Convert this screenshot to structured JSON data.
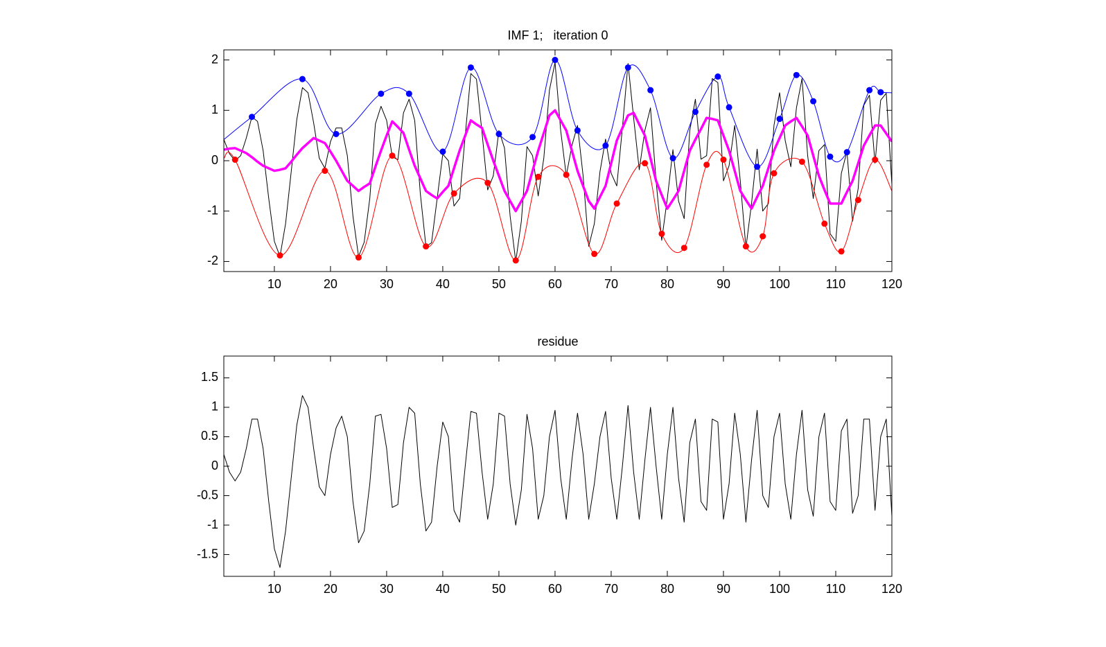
{
  "chart_data": [
    {
      "type": "line",
      "title": "IMF 1;   iteration 0",
      "xlim": [
        1,
        120
      ],
      "ylim": [
        -2.2,
        2.2
      ],
      "xticks": [
        10,
        20,
        30,
        40,
        50,
        60,
        70,
        80,
        90,
        100,
        110,
        120
      ],
      "yticks": [
        -2,
        -1,
        0,
        1,
        2
      ],
      "x": [
        1,
        2,
        3,
        4,
        5,
        6,
        7,
        8,
        9,
        10,
        11,
        12,
        13,
        14,
        15,
        16,
        17,
        18,
        19,
        20,
        21,
        22,
        23,
        24,
        25,
        26,
        27,
        28,
        29,
        30,
        31,
        32,
        33,
        34,
        35,
        36,
        37,
        38,
        39,
        40,
        41,
        42,
        43,
        44,
        45,
        46,
        47,
        48,
        49,
        50,
        51,
        52,
        53,
        54,
        55,
        56,
        57,
        58,
        59,
        60,
        61,
        62,
        63,
        64,
        65,
        66,
        67,
        68,
        69,
        70,
        71,
        72,
        73,
        74,
        75,
        76,
        77,
        78,
        79,
        80,
        81,
        82,
        83,
        84,
        85,
        86,
        87,
        88,
        89,
        90,
        91,
        92,
        93,
        94,
        95,
        96,
        97,
        98,
        99,
        100,
        101,
        102,
        103,
        104,
        105,
        106,
        107,
        108,
        109,
        110,
        111,
        112,
        113,
        114,
        115,
        116,
        117,
        118,
        119,
        120
      ],
      "series": [
        {
          "kind": "line",
          "color": "#000000",
          "width": 1,
          "values": [
            0.42,
            0.14,
            0,
            0.1,
            0.45,
            0.87,
            0.78,
            0.2,
            -0.75,
            -1.6,
            -1.9,
            -1.25,
            -0.22,
            0.82,
            1.45,
            1.35,
            0.75,
            0.05,
            -0.15,
            0.38,
            0.65,
            0.65,
            0.1,
            -1.1,
            -1.9,
            -1.62,
            -0.75,
            0.73,
            1.08,
            0.8,
            0.08,
            0.02,
            0.95,
            1.22,
            0.8,
            -0.65,
            -1.7,
            -1.63,
            -0.75,
            0.13,
            0,
            -0.9,
            -0.75,
            0.5,
            1.73,
            1.62,
            0.55,
            -0.58,
            -0.3,
            0.6,
            0.25,
            -1.1,
            -2.0,
            -1.2,
            0.28,
            0.1,
            -0.7,
            0.05,
            1.4,
            1.95,
            0.6,
            -0.3,
            0.3,
            0.7,
            -0.3,
            -1.7,
            -1.25,
            -0.22,
            0.43,
            -0.25,
            -0.5,
            0.65,
            1.93,
            0.85,
            -0.18,
            0.6,
            1.05,
            -0.4,
            -1.58,
            -0.75,
            0.22,
            -0.8,
            -1.15,
            0.6,
            1.22,
            0.03,
            0.1,
            1.63,
            1.55,
            -0.4,
            -0.1,
            0.7,
            -0.4,
            -1.73,
            -0.85,
            0.23,
            -1.0,
            -0.85,
            0.7,
            1.35,
            0.4,
            -0.12,
            1.05,
            1.63,
            0.1,
            -0.75,
            0.2,
            0.32,
            -1.45,
            -1.6,
            -0.25,
            0.18,
            -1.2,
            -0.55,
            1.1,
            1.3,
            -0.05,
            1.2,
            1.34,
            -0.47
          ]
        },
        {
          "kind": "line",
          "smooth": true,
          "color": "#0000ff",
          "width": 1,
          "x": [
            1,
            6,
            15,
            21,
            29,
            34,
            40,
            45,
            50,
            56,
            60,
            64,
            69,
            73,
            77,
            81,
            85,
            89,
            91,
            96,
            100,
            103,
            106,
            109,
            112,
            116,
            118,
            120
          ],
          "values": [
            0.42,
            0.87,
            1.62,
            0.53,
            1.33,
            1.33,
            0.18,
            1.85,
            0.53,
            0.47,
            2.0,
            0.6,
            0.3,
            1.85,
            1.4,
            0.05,
            0.97,
            1.67,
            1.06,
            -0.12,
            0.83,
            1.7,
            1.18,
            0.08,
            0.17,
            1.4,
            1.36,
            1.35
          ]
        },
        {
          "kind": "line",
          "smooth": true,
          "color": "#ff0000",
          "width": 1,
          "x": [
            1,
            3,
            11,
            19,
            25,
            31,
            37,
            42,
            48,
            53,
            57,
            62,
            67,
            71,
            76,
            79,
            83,
            87,
            90,
            94,
            97,
            99,
            104,
            108,
            111,
            114,
            117,
            120
          ],
          "values": [
            0.05,
            0.02,
            -1.88,
            -0.2,
            -1.92,
            0.1,
            -1.7,
            -0.65,
            -0.44,
            -1.98,
            -0.32,
            -0.28,
            -1.85,
            -0.85,
            -0.05,
            -1.45,
            -1.73,
            -0.08,
            0.02,
            -1.7,
            -1.5,
            -0.25,
            -0.02,
            -1.25,
            -1.8,
            -0.78,
            0.02,
            -0.6
          ]
        },
        {
          "kind": "line",
          "color": "#ff00ff",
          "width": 3.5,
          "values": [
            0.22,
            0.24,
            0.25,
            0.2,
            0.15,
            0.07,
            -0.02,
            -0.1,
            -0.15,
            -0.2,
            -0.18,
            -0.15,
            -0.02,
            0.12,
            0.25,
            0.35,
            0.45,
            0.4,
            0.35,
            0.18,
            0,
            -0.2,
            -0.4,
            -0.5,
            -0.6,
            -0.52,
            -0.45,
            -0.12,
            0.2,
            0.5,
            0.78,
            0.67,
            0.55,
            0.22,
            -0.1,
            -0.35,
            -0.6,
            -0.68,
            -0.75,
            -0.62,
            -0.5,
            -0.15,
            0.2,
            0.5,
            0.8,
            0.72,
            0.65,
            0.32,
            0,
            -0.3,
            -0.6,
            -0.8,
            -1.0,
            -0.8,
            -0.6,
            -0.2,
            0.2,
            0.55,
            0.9,
            1.0,
            0.8,
            0.6,
            0.2,
            -0.2,
            -0.5,
            -0.8,
            -0.95,
            -0.72,
            -0.5,
            -0.05,
            0.4,
            0.65,
            0.9,
            0.95,
            0.72,
            0.5,
            0.05,
            -0.4,
            -0.68,
            -0.95,
            -0.78,
            -0.6,
            -0.2,
            0.2,
            0.42,
            0.63,
            0.85,
            0.83,
            0.8,
            0.5,
            0.2,
            -0.2,
            -0.6,
            -0.78,
            -0.95,
            -0.72,
            -0.5,
            -0.15,
            0.2,
            0.45,
            0.7,
            0.78,
            0.85,
            0.68,
            0.5,
            0.1,
            -0.3,
            -0.58,
            -0.85,
            -0.85,
            -0.85,
            -0.62,
            -0.4,
            -0.05,
            0.3,
            0.5,
            0.7,
            0.7,
            0.54,
            0.38
          ]
        },
        {
          "kind": "scatter",
          "color": "#0000ff",
          "x": [
            6,
            15,
            21,
            29,
            34,
            40,
            45,
            50,
            56,
            60,
            64,
            69,
            73,
            77,
            81,
            85,
            89,
            91,
            96,
            100,
            103,
            106,
            109,
            112,
            116,
            118
          ],
          "values": [
            0.87,
            1.62,
            0.53,
            1.33,
            1.33,
            0.18,
            1.85,
            0.53,
            0.47,
            2.0,
            0.6,
            0.3,
            1.85,
            1.4,
            0.05,
            0.97,
            1.67,
            1.06,
            -0.12,
            0.83,
            1.7,
            1.18,
            0.08,
            0.17,
            1.4,
            1.36
          ]
        },
        {
          "kind": "scatter",
          "color": "#ff0000",
          "x": [
            3,
            11,
            19,
            25,
            31,
            37,
            42,
            48,
            53,
            57,
            62,
            67,
            71,
            76,
            79,
            83,
            87,
            90,
            94,
            97,
            99,
            104,
            108,
            111,
            114,
            117
          ],
          "values": [
            0.02,
            -1.88,
            -0.2,
            -1.92,
            0.1,
            -1.7,
            -0.65,
            -0.44,
            -1.98,
            -0.32,
            -0.28,
            -1.85,
            -0.85,
            -0.05,
            -1.45,
            -1.73,
            -0.08,
            0.02,
            -1.7,
            -1.5,
            -0.25,
            -0.02,
            -1.25,
            -1.8,
            -0.78,
            0.02
          ]
        }
      ]
    },
    {
      "type": "line",
      "title": "residue",
      "xlim": [
        1,
        120
      ],
      "ylim": [
        -1.87,
        1.87
      ],
      "xticks": [
        10,
        20,
        30,
        40,
        50,
        60,
        70,
        80,
        90,
        100,
        110,
        120
      ],
      "yticks": [
        -1.5,
        -1,
        -0.5,
        0,
        0.5,
        1,
        1.5
      ],
      "x": [
        1,
        2,
        3,
        4,
        5,
        6,
        7,
        8,
        9,
        10,
        11,
        12,
        13,
        14,
        15,
        16,
        17,
        18,
        19,
        20,
        21,
        22,
        23,
        24,
        25,
        26,
        27,
        28,
        29,
        30,
        31,
        32,
        33,
        34,
        35,
        36,
        37,
        38,
        39,
        40,
        41,
        42,
        43,
        44,
        45,
        46,
        47,
        48,
        49,
        50,
        51,
        52,
        53,
        54,
        55,
        56,
        57,
        58,
        59,
        60,
        61,
        62,
        63,
        64,
        65,
        66,
        67,
        68,
        69,
        70,
        71,
        72,
        73,
        74,
        75,
        76,
        77,
        78,
        79,
        80,
        81,
        82,
        83,
        84,
        85,
        86,
        87,
        88,
        89,
        90,
        91,
        92,
        93,
        94,
        95,
        96,
        97,
        98,
        99,
        100,
        101,
        102,
        103,
        104,
        105,
        106,
        107,
        108,
        109,
        110,
        111,
        112,
        113,
        114,
        115,
        116,
        117,
        118,
        119,
        120
      ],
      "series": [
        {
          "kind": "line",
          "color": "#000000",
          "width": 1,
          "values": [
            0.2,
            -0.1,
            -0.25,
            -0.1,
            0.3,
            0.8,
            0.8,
            0.3,
            -0.6,
            -1.4,
            -1.72,
            -1.1,
            -0.2,
            0.7,
            1.2,
            1.0,
            0.3,
            -0.35,
            -0.5,
            0.2,
            0.65,
            0.85,
            0.5,
            -0.6,
            -1.3,
            -1.1,
            -0.3,
            0.85,
            0.88,
            0.3,
            -0.7,
            -0.65,
            0.4,
            1.0,
            0.9,
            -0.3,
            -1.1,
            -0.95,
            0,
            0.75,
            0.5,
            -0.75,
            -0.95,
            0,
            0.93,
            0.9,
            -0.1,
            -0.9,
            -0.3,
            0.9,
            0.85,
            -0.3,
            -1.0,
            -0.4,
            0.88,
            0.3,
            -0.9,
            -0.5,
            0.5,
            0.95,
            -0.2,
            -0.9,
            0.1,
            0.9,
            0.2,
            -0.9,
            -0.3,
            0.5,
            0.93,
            -0.2,
            -0.9,
            0,
            1.03,
            -0.1,
            -0.9,
            0.1,
            1.0,
            0,
            -0.9,
            0.2,
            1.0,
            -0.2,
            -0.95,
            0.4,
            0.8,
            -0.6,
            -0.75,
            0.8,
            0.75,
            -0.9,
            -0.3,
            0.9,
            0.2,
            -0.95,
            0.1,
            0.95,
            -0.5,
            -0.7,
            0.5,
            0.9,
            -0.3,
            -0.9,
            0.2,
            0.95,
            -0.4,
            -0.85,
            0.5,
            0.9,
            -0.6,
            -0.75,
            0.6,
            0.8,
            -0.8,
            -0.5,
            0.8,
            0.8,
            -0.75,
            0.5,
            0.8,
            -0.85
          ]
        }
      ]
    }
  ]
}
